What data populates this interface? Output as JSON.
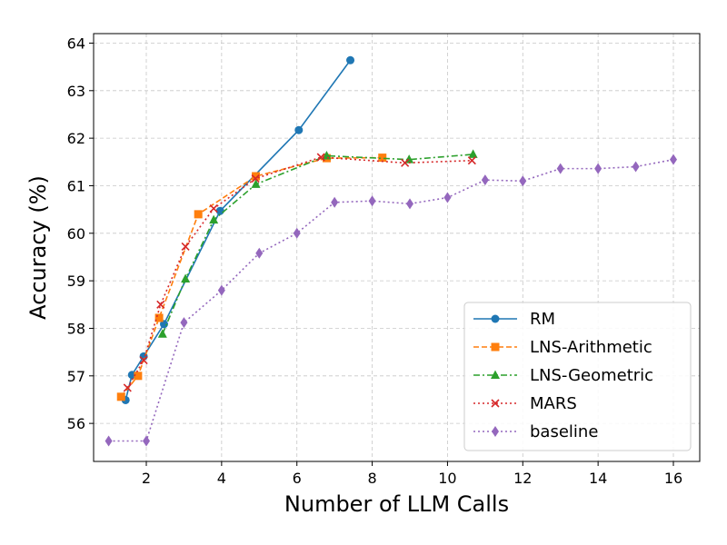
{
  "chart_data": {
    "type": "line",
    "xlabel": "Number of LLM Calls",
    "ylabel": "Accuracy (%)",
    "xlim": [
      0.6,
      16.7
    ],
    "ylim": [
      55.2,
      64.2
    ],
    "x_ticks": [
      2,
      4,
      6,
      8,
      10,
      12,
      14,
      16
    ],
    "y_ticks": [
      56,
      57,
      58,
      59,
      60,
      61,
      62,
      63,
      64
    ],
    "grid": true,
    "legend_position": "lower-right",
    "series": [
      {
        "name": "RM",
        "color": "#1f77b4",
        "line_style": "solid",
        "marker": "circle",
        "x": [
          1.45,
          1.62,
          1.93,
          2.47,
          3.96,
          6.05,
          7.42
        ],
        "y": [
          56.49,
          57.02,
          57.41,
          58.09,
          60.47,
          62.17,
          63.64
        ]
      },
      {
        "name": "LNS-Arithmetic",
        "color": "#ff7f0e",
        "line_style": "dashed",
        "marker": "square",
        "x": [
          1.33,
          1.78,
          2.34,
          3.38,
          4.91,
          6.79,
          8.27
        ],
        "y": [
          56.56,
          57.0,
          58.22,
          60.4,
          61.2,
          61.58,
          61.59
        ]
      },
      {
        "name": "LNS-Geometric",
        "color": "#2ca02c",
        "line_style": "dashdot",
        "marker": "triangle",
        "x": [
          2.43,
          3.04,
          3.79,
          4.91,
          6.79,
          8.98,
          10.68
        ],
        "y": [
          57.88,
          59.04,
          60.28,
          61.03,
          61.63,
          61.55,
          61.66
        ]
      },
      {
        "name": "MARS",
        "color": "#d62728",
        "line_style": "dotted",
        "marker": "x",
        "x": [
          1.5,
          1.93,
          2.38,
          3.04,
          3.79,
          4.9,
          6.64,
          8.87,
          10.65
        ],
        "y": [
          56.75,
          57.33,
          58.5,
          59.72,
          60.52,
          61.15,
          61.6,
          61.48,
          61.53
        ]
      },
      {
        "name": "baseline",
        "color": "#9467bd",
        "line_style": "dotted",
        "marker": "diamond",
        "x": [
          1,
          2,
          3,
          4,
          5,
          6,
          7,
          8,
          9,
          10,
          11,
          12,
          13,
          14,
          15,
          16
        ],
        "y": [
          55.63,
          55.63,
          58.12,
          58.8,
          59.58,
          60.0,
          60.65,
          60.68,
          60.62,
          60.75,
          61.12,
          61.1,
          61.36,
          61.36,
          61.4,
          61.55
        ]
      }
    ]
  }
}
